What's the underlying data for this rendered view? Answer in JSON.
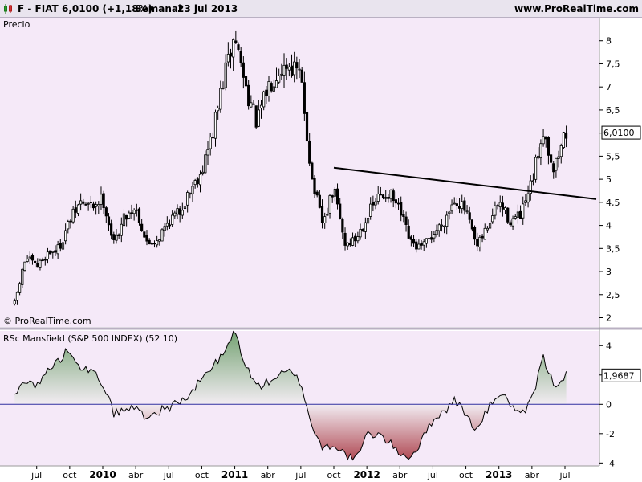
{
  "header": {
    "symbol": "F - FIAT",
    "last": "6,0100 (+1,18%)",
    "period": "Semanal",
    "date": "23 jul 2013",
    "site": "www.ProRealTime.com"
  },
  "colors": {
    "background": "#f5e9f8",
    "candle": "#000000",
    "trendline": "#000000",
    "positive_fill": "#74a272",
    "negative_fill": "#b04a54",
    "zero_line": "#3030a0",
    "label_box": "#ffffff"
  },
  "chart_data": [
    {
      "type": "candlestick",
      "title": "Precio",
      "watermark": "© ProRealTime.com",
      "last_value_label": "6,0100",
      "ylim": [
        1.8,
        8.5
      ],
      "yticks": [
        2,
        2.5,
        3,
        3.5,
        4,
        4.5,
        5,
        5.5,
        6,
        6.5,
        7,
        7.5,
        8
      ],
      "ytick_labels": [
        "2",
        "2,5",
        "3",
        "3,5",
        "4",
        "4,5",
        "5",
        "5,5",
        "6",
        "6,5",
        "7",
        "7,5",
        "8"
      ],
      "x_start": "2009-05",
      "x_end": "2013-07",
      "close_anchors": [
        [
          "2009-05",
          2.3
        ],
        [
          "2009-06",
          3.3
        ],
        [
          "2009-07",
          3.1
        ],
        [
          "2009-08",
          3.4
        ],
        [
          "2009-09",
          3.5
        ],
        [
          "2009-10",
          4.1
        ],
        [
          "2009-11",
          4.5
        ],
        [
          "2009-12",
          4.4
        ],
        [
          "2010-01",
          4.6
        ],
        [
          "2010-02",
          3.6
        ],
        [
          "2010-03",
          4.2
        ],
        [
          "2010-04",
          4.4
        ],
        [
          "2010-05",
          3.6
        ],
        [
          "2010-06",
          3.7
        ],
        [
          "2010-07",
          4.1
        ],
        [
          "2010-08",
          4.3
        ],
        [
          "2010-09",
          4.8
        ],
        [
          "2010-10",
          5.2
        ],
        [
          "2010-11",
          6.0
        ],
        [
          "2010-12",
          7.2
        ],
        [
          "2011-01",
          8.1
        ],
        [
          "2011-02",
          7.0
        ],
        [
          "2011-03",
          6.2
        ],
        [
          "2011-04",
          7.0
        ],
        [
          "2011-05",
          7.4
        ],
        [
          "2011-06",
          7.5
        ],
        [
          "2011-07",
          7.2
        ],
        [
          "2011-08",
          5.0
        ],
        [
          "2011-09",
          4.0
        ],
        [
          "2011-10",
          4.8
        ],
        [
          "2011-11",
          3.6
        ],
        [
          "2011-12",
          3.7
        ],
        [
          "2012-01",
          4.2
        ],
        [
          "2012-02",
          4.6
        ],
        [
          "2012-03",
          4.7
        ],
        [
          "2012-04",
          4.3
        ],
        [
          "2012-05",
          3.6
        ],
        [
          "2012-06",
          3.5
        ],
        [
          "2012-07",
          3.8
        ],
        [
          "2012-08",
          4.1
        ],
        [
          "2012-09",
          4.6
        ],
        [
          "2012-10",
          4.3
        ],
        [
          "2012-11",
          3.5
        ],
        [
          "2012-12",
          4.0
        ],
        [
          "2013-01",
          4.5
        ],
        [
          "2013-02",
          4.1
        ],
        [
          "2013-03",
          4.2
        ],
        [
          "2013-04",
          4.9
        ],
        [
          "2013-05",
          6.1
        ],
        [
          "2013-06",
          5.2
        ],
        [
          "2013-07",
          6.01
        ]
      ],
      "trendline": {
        "start": [
          "2011-10",
          5.25
        ],
        "end": [
          "2013-07",
          4.57
        ]
      },
      "x_ticks": [
        {
          "date": "2009-07",
          "label": "jul"
        },
        {
          "date": "2009-10",
          "label": "oct"
        },
        {
          "date": "2010-01",
          "label": "2010",
          "bold": true
        },
        {
          "date": "2010-04",
          "label": "abr"
        },
        {
          "date": "2010-07",
          "label": "jul"
        },
        {
          "date": "2010-10",
          "label": "oct"
        },
        {
          "date": "2011-01",
          "label": "2011",
          "bold": true
        },
        {
          "date": "2011-04",
          "label": "abr"
        },
        {
          "date": "2011-07",
          "label": "jul"
        },
        {
          "date": "2011-10",
          "label": "oct"
        },
        {
          "date": "2012-01",
          "label": "2012",
          "bold": true
        },
        {
          "date": "2012-04",
          "label": "abr"
        },
        {
          "date": "2012-07",
          "label": "jul"
        },
        {
          "date": "2012-10",
          "label": "oct"
        },
        {
          "date": "2013-01",
          "label": "2013",
          "bold": true
        },
        {
          "date": "2013-04",
          "label": "abr"
        },
        {
          "date": "2013-07",
          "label": "jul"
        }
      ]
    },
    {
      "type": "area",
      "title": "RSc Mansfield (S&P 500 INDEX) (52 10)",
      "last_value_label": "1,9687",
      "ylim": [
        -4.2,
        5
      ],
      "yticks": [
        -4,
        -2,
        0,
        2,
        4
      ],
      "ytick_labels": [
        "-4",
        "-2",
        "0",
        "2",
        "4"
      ],
      "baseline": 0,
      "value_anchors": [
        [
          "2009-05",
          0.5
        ],
        [
          "2009-06",
          1.8
        ],
        [
          "2009-07",
          1.2
        ],
        [
          "2009-08",
          2.3
        ],
        [
          "2009-09",
          3.0
        ],
        [
          "2009-10",
          3.8
        ],
        [
          "2009-11",
          2.6
        ],
        [
          "2009-12",
          2.2
        ],
        [
          "2010-01",
          1.5
        ],
        [
          "2010-02",
          -0.6
        ],
        [
          "2010-03",
          -0.4
        ],
        [
          "2010-04",
          -0.2
        ],
        [
          "2010-05",
          -0.9
        ],
        [
          "2010-06",
          -0.5
        ],
        [
          "2010-07",
          -0.2
        ],
        [
          "2010-08",
          0.2
        ],
        [
          "2010-09",
          0.6
        ],
        [
          "2010-10",
          1.8
        ],
        [
          "2010-11",
          2.6
        ],
        [
          "2010-12",
          3.4
        ],
        [
          "2011-01",
          5.0
        ],
        [
          "2011-02",
          2.6
        ],
        [
          "2011-03",
          1.2
        ],
        [
          "2011-04",
          1.5
        ],
        [
          "2011-05",
          2.0
        ],
        [
          "2011-06",
          2.2
        ],
        [
          "2011-07",
          1.5
        ],
        [
          "2011-08",
          -1.5
        ],
        [
          "2011-09",
          -3.0
        ],
        [
          "2011-10",
          -2.7
        ],
        [
          "2011-11",
          -3.4
        ],
        [
          "2011-12",
          -3.8
        ],
        [
          "2012-01",
          -2.1
        ],
        [
          "2012-02",
          -2.0
        ],
        [
          "2012-03",
          -2.6
        ],
        [
          "2012-04",
          -3.3
        ],
        [
          "2012-05",
          -3.6
        ],
        [
          "2012-06",
          -2.5
        ],
        [
          "2012-07",
          -1.0
        ],
        [
          "2012-08",
          -0.5
        ],
        [
          "2012-09",
          0.3
        ],
        [
          "2012-10",
          -0.7
        ],
        [
          "2012-11",
          -1.8
        ],
        [
          "2012-12",
          -0.3
        ],
        [
          "2013-01",
          0.8
        ],
        [
          "2013-02",
          0.1
        ],
        [
          "2013-03",
          -0.9
        ],
        [
          "2013-04",
          0.3
        ],
        [
          "2013-05",
          3.2
        ],
        [
          "2013-06",
          1.3
        ],
        [
          "2013-07",
          1.97
        ]
      ],
      "x_ticks_same_as_price": true
    }
  ]
}
